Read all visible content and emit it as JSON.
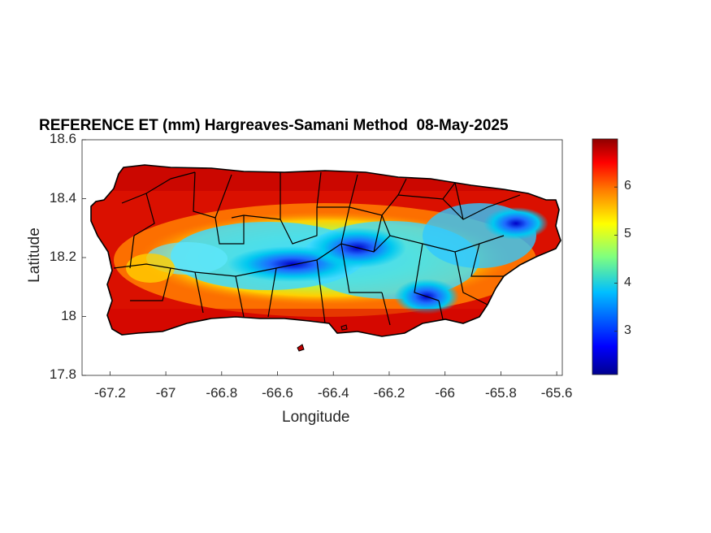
{
  "title": "REFERENCE ET (mm) Hargreaves-Samani Method  08-May-2025",
  "xlabel": "Longitude",
  "ylabel": "Latitude",
  "xticks": [
    "-67.2",
    "-67",
    "-66.8",
    "-66.6",
    "-66.4",
    "-66.2",
    "-66",
    "-65.8",
    "-65.6"
  ],
  "yticks": [
    "18.6",
    "18.4",
    "18.2",
    "18",
    "17.8"
  ],
  "colorbar_ticks": [
    "6",
    "5",
    "4",
    "3"
  ],
  "colormap": [
    "#00008f",
    "#0000ff",
    "#00bfff",
    "#7fff7f",
    "#ffff00",
    "#ff7f00",
    "#ff0000",
    "#8f0000"
  ],
  "chart_data": {
    "type": "heatmap",
    "title": "REFERENCE ET (mm) Hargreaves-Samani Method  08-May-2025",
    "xlabel": "Longitude",
    "ylabel": "Latitude",
    "xlim": [
      -67.3,
      -65.58
    ],
    "ylim": [
      17.8,
      18.6
    ],
    "clim": [
      2.1,
      7.0
    ],
    "colorbar": "right",
    "grid": false,
    "description_values": "Highest values (~6.5-7 mm) along north coast and western/southern lowlands; lowest values (~2.5-4 mm) in central mountains and east (El Yunque area)"
  }
}
